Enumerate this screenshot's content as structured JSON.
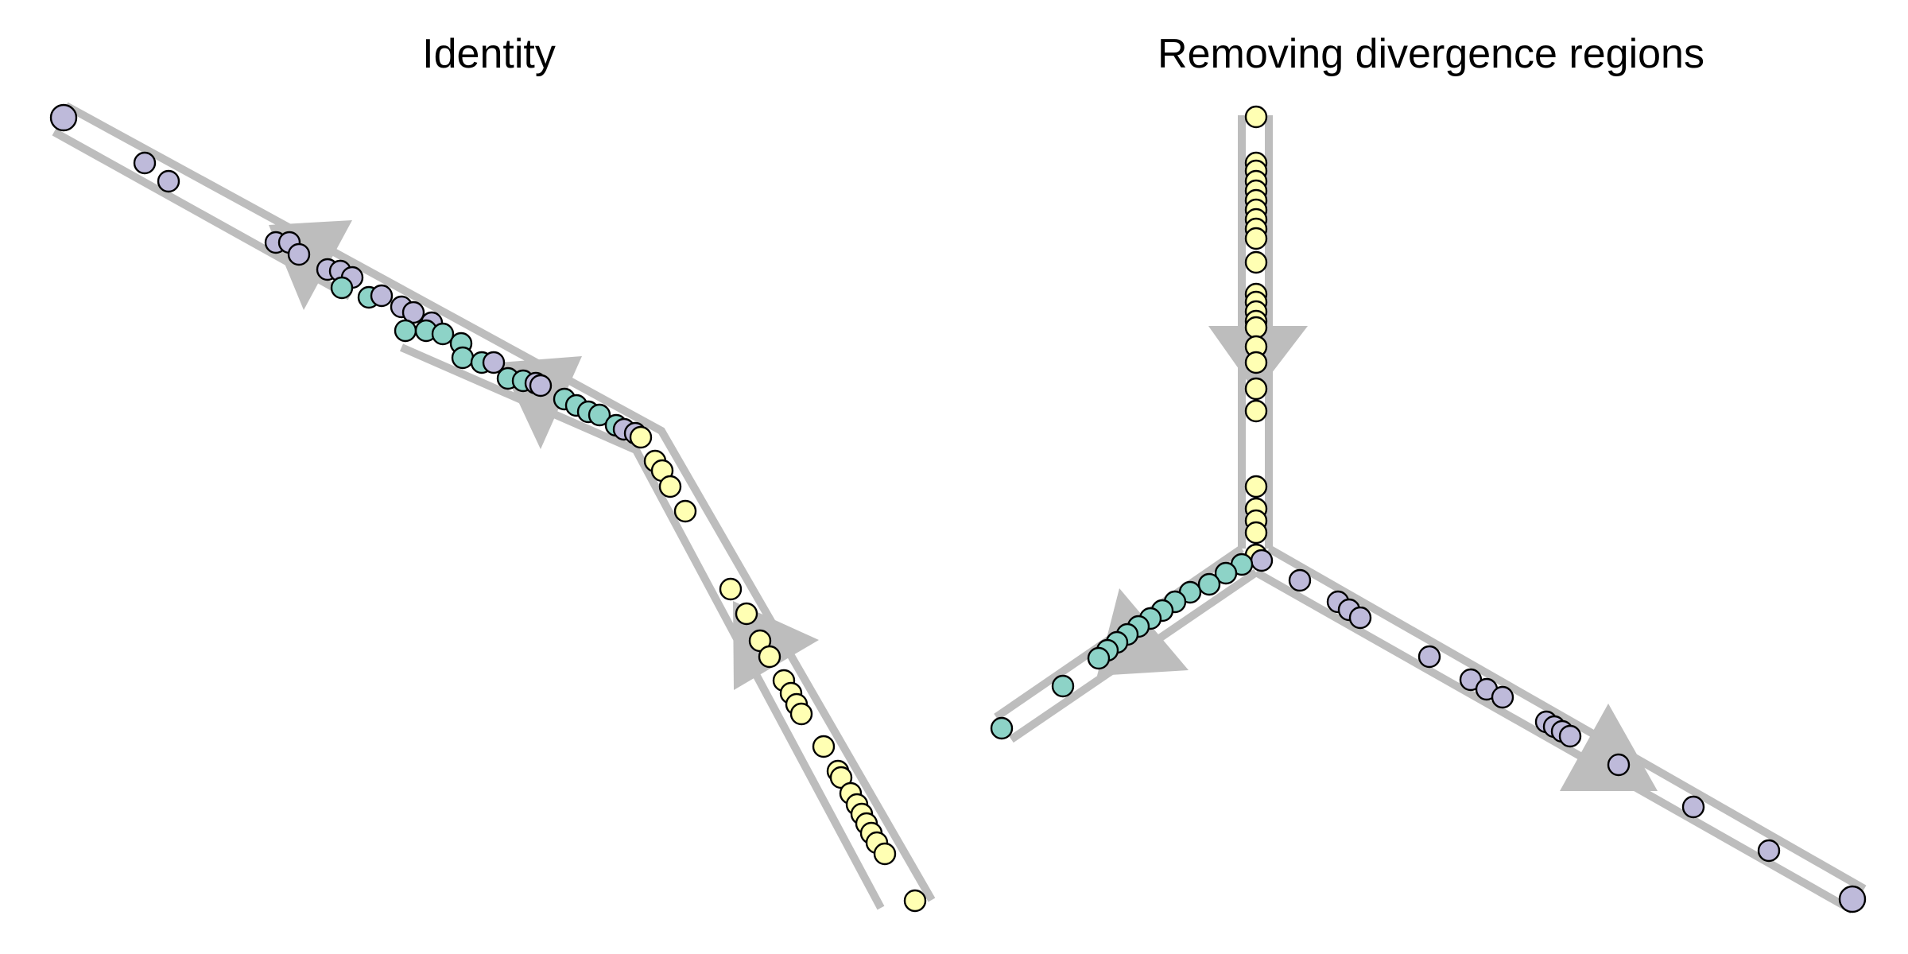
{
  "colors": {
    "track": "#bdbdbd",
    "cell_outline": "#000000",
    "purple": "#bebada",
    "teal": "#8dd3c7",
    "yellow": "#ffffb3"
  },
  "panels": [
    {
      "id": "identity",
      "title": "Identity",
      "arrow_direction": "backwards along the upper branch, forward along the lower branch",
      "cell_colors_along_trajectory": [
        "purple",
        "teal",
        "yellow"
      ]
    },
    {
      "id": "removing-divergence",
      "title": "Removing divergence regions",
      "arrow_direction": "from top stem into the branch point, then out along left and right branches",
      "cell_colors_along_trajectory": [
        "yellow",
        "teal",
        "purple"
      ]
    }
  ]
}
